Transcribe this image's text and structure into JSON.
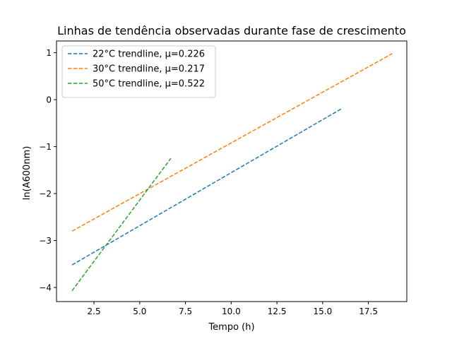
{
  "chart_data": {
    "type": "line",
    "title": "Linhas de tendência observadas durante fase de crescimento",
    "xlabel": "Tempo (h)",
    "ylabel": "ln(A600nm)",
    "xlim": [
      0.45,
      19.6
    ],
    "ylim": [
      -4.3,
      1.25
    ],
    "x_ticks": [
      2.5,
      5.0,
      7.5,
      10.0,
      12.5,
      15.0,
      17.5
    ],
    "x_tick_labels": [
      "2.5",
      "5.0",
      "7.5",
      "10.0",
      "12.5",
      "15.0",
      "17.5"
    ],
    "y_ticks": [
      -4,
      -3,
      -2,
      -1,
      0,
      1
    ],
    "y_tick_labels": [
      "−4",
      "−3",
      "−2",
      "−1",
      "0",
      "1"
    ],
    "grid": false,
    "legend_position": "top-left",
    "series": [
      {
        "name": "22°C trendline, μ=0.226",
        "color": "#1f77b4",
        "linestyle": "dashed",
        "x": [
          1.3,
          16.0
        ],
        "y": [
          -3.52,
          -0.2
        ]
      },
      {
        "name": "30°C trendline, μ=0.217",
        "color": "#ff7f0e",
        "linestyle": "dashed",
        "x": [
          1.3,
          18.8
        ],
        "y": [
          -2.8,
          0.98
        ]
      },
      {
        "name": "50°C trendline, μ=0.522",
        "color": "#2ca02c",
        "linestyle": "dashed",
        "x": [
          1.3,
          6.7
        ],
        "y": [
          -4.07,
          -1.25
        ]
      }
    ]
  }
}
